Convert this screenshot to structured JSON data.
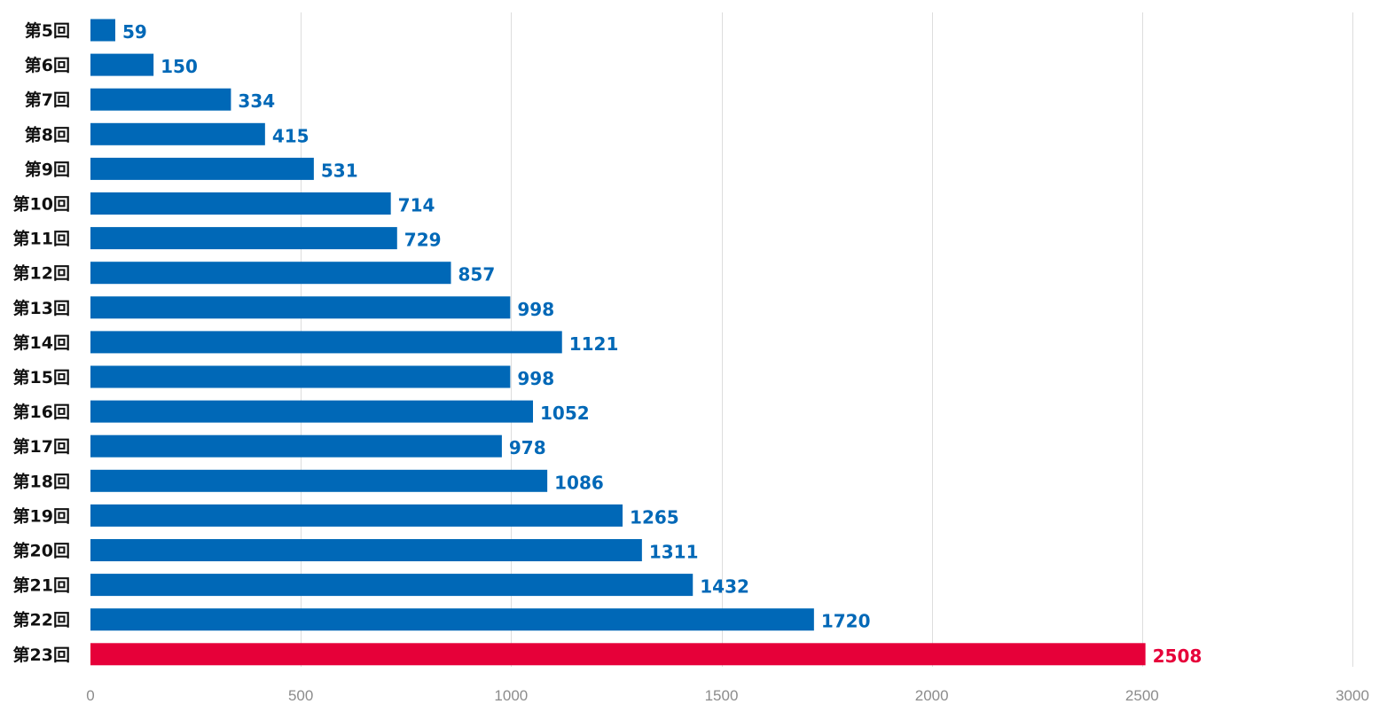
{
  "chart_data": {
    "type": "bar",
    "orientation": "horizontal",
    "title": "",
    "xlabel": "",
    "ylabel": "",
    "categories": [
      "第5回",
      "第6回",
      "第7回",
      "第8回",
      "第9回",
      "第10回",
      "第11回",
      "第12回",
      "第13回",
      "第14回",
      "第15回",
      "第16回",
      "第17回",
      "第18回",
      "第19回",
      "第20回",
      "第21回",
      "第22回",
      "第23回"
    ],
    "values": [
      59,
      150,
      334,
      415,
      531,
      714,
      729,
      857,
      998,
      1121,
      998,
      1052,
      978,
      1086,
      1265,
      1311,
      1432,
      1720,
      2508
    ],
    "xlim": [
      0,
      3000
    ],
    "xticks": [
      "0",
      "500",
      "1000",
      "1500",
      "2000",
      "2500",
      "3000"
    ],
    "grid": true,
    "legend": "none",
    "colors": {
      "default": "#0068b7",
      "highlight": "#e60039",
      "tick_text": "#8c8c8c",
      "category_text": "#111111",
      "grid": "#dddddd"
    },
    "highlight_index": 18
  }
}
